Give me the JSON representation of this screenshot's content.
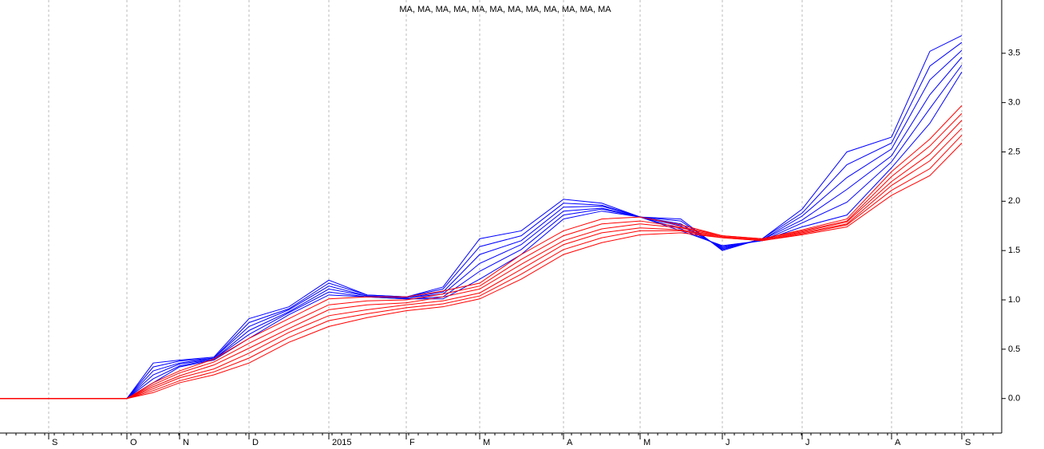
{
  "chart_data": {
    "type": "line",
    "title": "MA, MA, MA, MA, MA, MA, MA, MA, MA, MA, MA, MA",
    "categories": [
      null,
      "S",
      null,
      "O",
      null,
      "N",
      null,
      "D",
      null,
      "2015",
      null,
      "F",
      null,
      "M",
      null,
      "A",
      null,
      "M",
      null,
      "J",
      null,
      "J",
      null,
      "A",
      null,
      "S"
    ],
    "ylim": [
      -0.35,
      4.04
    ],
    "yticks": [
      {
        "value": 0,
        "label": "0.0"
      },
      0.5,
      {
        "value": 1,
        "label": "1.0"
      },
      1.5,
      {
        "value": 2,
        "label": "2.0"
      },
      2.5,
      {
        "value": 3,
        "label": "3.0"
      },
      3.5
    ],
    "grid": true,
    "series": [
      {
        "color": "#0000ff",
        "values": [
          0,
          0,
          0,
          0,
          0.36,
          0.39,
          0.42,
          0.81,
          0.93,
          1.2,
          1.05,
          1.03,
          1.13,
          1.62,
          1.7,
          2.02,
          1.98,
          1.84,
          1.82,
          1.5,
          1.62,
          1.92,
          2.5,
          2.65,
          3.52,
          3.68
        ]
      },
      {
        "color": "#0000ff",
        "values": [
          0,
          0,
          0,
          0,
          0.32,
          0.38,
          0.41,
          0.77,
          0.91,
          1.17,
          1.05,
          1.03,
          1.11,
          1.54,
          1.65,
          1.98,
          1.96,
          1.84,
          1.8,
          1.51,
          1.62,
          1.88,
          2.37,
          2.59,
          3.37,
          3.61
        ]
      },
      {
        "color": "#0000ff",
        "values": [
          0,
          0,
          0,
          0,
          0.28,
          0.36,
          0.41,
          0.73,
          0.9,
          1.14,
          1.04,
          1.02,
          1.08,
          1.46,
          1.6,
          1.94,
          1.95,
          1.84,
          1.77,
          1.52,
          1.61,
          1.85,
          2.24,
          2.53,
          3.23,
          3.53
        ]
      },
      {
        "color": "#0000ff",
        "values": [
          0,
          0,
          0,
          0,
          0.24,
          0.35,
          0.4,
          0.69,
          0.88,
          1.11,
          1.04,
          1.02,
          1.06,
          1.37,
          1.56,
          1.9,
          1.93,
          1.84,
          1.75,
          1.53,
          1.61,
          1.81,
          2.12,
          2.46,
          3.08,
          3.46
        ]
      },
      {
        "color": "#0000ff",
        "values": [
          0,
          0,
          0,
          0,
          0.2,
          0.33,
          0.4,
          0.65,
          0.87,
          1.08,
          1.03,
          1.01,
          1.03,
          1.29,
          1.51,
          1.86,
          1.92,
          1.84,
          1.72,
          1.54,
          1.6,
          1.78,
          1.99,
          2.4,
          2.94,
          3.38
        ]
      },
      {
        "color": "#0000ff",
        "values": [
          0,
          0,
          0,
          0,
          0.16,
          0.32,
          0.39,
          0.61,
          0.85,
          1.05,
          1.03,
          1.01,
          1.01,
          1.21,
          1.46,
          1.82,
          1.9,
          1.84,
          1.7,
          1.55,
          1.6,
          1.74,
          1.86,
          2.34,
          2.79,
          3.31
        ]
      },
      {
        "color": "#ff0000",
        "values": [
          0,
          0,
          0,
          0,
          0.16,
          0.28,
          0.4,
          0.61,
          0.81,
          1.01,
          1.03,
          1.03,
          1.09,
          1.17,
          1.46,
          1.7,
          1.82,
          1.84,
          1.76,
          1.65,
          1.62,
          1.71,
          1.82,
          2.3,
          2.63,
          2.97
        ]
      },
      {
        "color": "#ff0000",
        "values": [
          0,
          0,
          0,
          0,
          0.14,
          0.26,
          0.37,
          0.56,
          0.76,
          0.95,
          0.99,
          1.0,
          1.06,
          1.14,
          1.41,
          1.65,
          1.77,
          1.8,
          1.74,
          1.65,
          1.62,
          1.7,
          1.8,
          2.25,
          2.56,
          2.89
        ]
      },
      {
        "color": "#ff0000",
        "values": [
          0,
          0,
          0,
          0,
          0.12,
          0.23,
          0.34,
          0.51,
          0.71,
          0.9,
          0.95,
          0.97,
          1.03,
          1.11,
          1.36,
          1.6,
          1.72,
          1.77,
          1.73,
          1.64,
          1.61,
          1.69,
          1.79,
          2.2,
          2.48,
          2.82
        ]
      },
      {
        "color": "#ff0000",
        "values": [
          0,
          0,
          0,
          0,
          0.1,
          0.21,
          0.3,
          0.46,
          0.67,
          0.84,
          0.9,
          0.95,
          0.99,
          1.07,
          1.31,
          1.56,
          1.68,
          1.73,
          1.71,
          1.64,
          1.61,
          1.68,
          1.77,
          2.16,
          2.41,
          2.74
        ]
      },
      {
        "color": "#ff0000",
        "values": [
          0,
          0,
          0,
          0,
          0.08,
          0.18,
          0.27,
          0.41,
          0.62,
          0.79,
          0.86,
          0.92,
          0.96,
          1.04,
          1.26,
          1.51,
          1.63,
          1.7,
          1.7,
          1.63,
          1.6,
          1.67,
          1.76,
          2.11,
          2.33,
          2.67
        ]
      },
      {
        "color": "#ff0000",
        "values": [
          0,
          0,
          0,
          0,
          0.06,
          0.16,
          0.24,
          0.36,
          0.57,
          0.73,
          0.82,
          0.89,
          0.93,
          1.01,
          1.21,
          1.46,
          1.58,
          1.66,
          1.68,
          1.63,
          1.6,
          1.66,
          1.74,
          2.06,
          2.26,
          2.59
        ]
      }
    ]
  }
}
